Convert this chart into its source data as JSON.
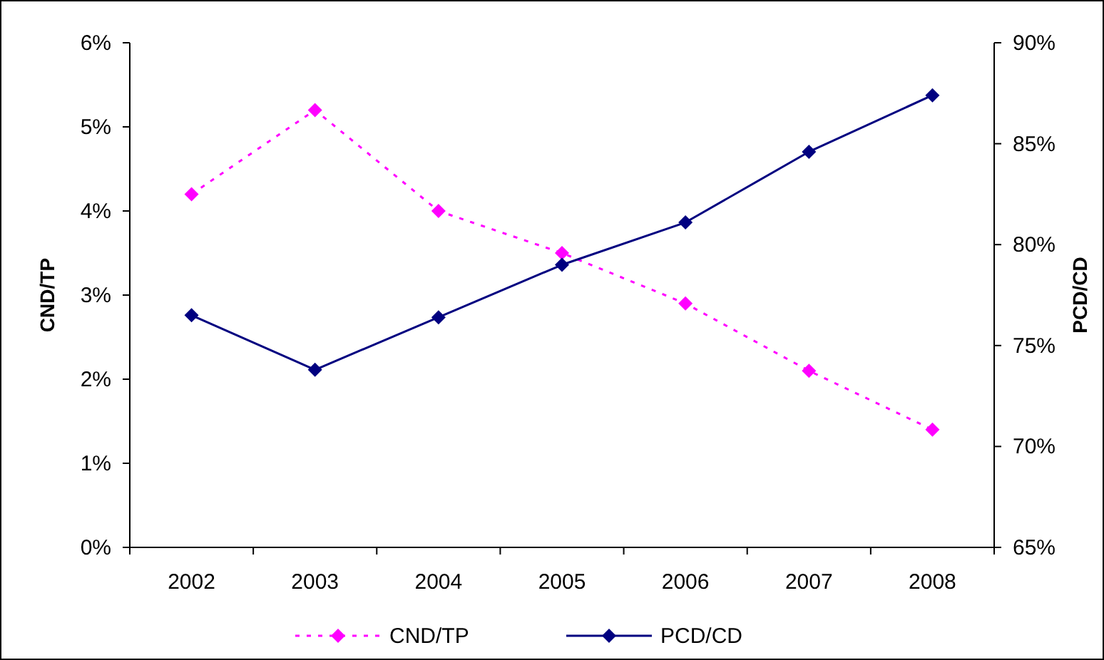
{
  "chart_data": {
    "type": "line",
    "categories": [
      "2002",
      "2003",
      "2004",
      "2005",
      "2006",
      "2007",
      "2008"
    ],
    "ylabel": "CND/TP",
    "y2label": "PCD/CD",
    "ylim": [
      0,
      6
    ],
    "yticks": [
      {
        "value": 0,
        "label": "0%"
      },
      {
        "value": 1,
        "label": "1%"
      },
      {
        "value": 2,
        "label": "2%"
      },
      {
        "value": 3,
        "label": "3%"
      },
      {
        "value": 4,
        "label": "4%"
      },
      {
        "value": 5,
        "label": "5%"
      },
      {
        "value": 6,
        "label": "6%"
      }
    ],
    "y2lim": [
      65,
      90
    ],
    "y2ticks": [
      {
        "value": 65,
        "label": "65%"
      },
      {
        "value": 70,
        "label": "70%"
      },
      {
        "value": 75,
        "label": "75%"
      },
      {
        "value": 80,
        "label": "80%"
      },
      {
        "value": 85,
        "label": "85%"
      },
      {
        "value": 90,
        "label": "90%"
      }
    ],
    "grid": false,
    "legend": "bottom",
    "marker": "diamond",
    "series": [
      {
        "name": "CND/TP",
        "color": "#ff00ff",
        "line_style": "dotted",
        "values": [
          4.2,
          5.2,
          4.0,
          3.5,
          2.9,
          2.1,
          1.4
        ]
      },
      {
        "name": "PCD/CD",
        "color": "#000080",
        "line_style": "solid",
        "axis": "y2",
        "values": [
          76.5,
          73.8,
          76.4,
          79.0,
          81.1,
          84.6,
          87.4
        ]
      }
    ]
  }
}
